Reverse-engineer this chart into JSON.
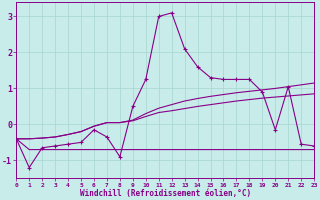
{
  "background_color": "#c8ecea",
  "grid_color": "#a8d4d0",
  "line_color": "#880088",
  "spine_color": "#880088",
  "xlabel": "Windchill (Refroidissement éolien,°C)",
  "xlim": [
    0,
    23
  ],
  "ylim": [
    -1.5,
    3.4
  ],
  "yticks": [
    -1,
    0,
    1,
    2,
    3
  ],
  "xticks": [
    0,
    1,
    2,
    3,
    4,
    5,
    6,
    7,
    8,
    9,
    10,
    11,
    12,
    13,
    14,
    15,
    16,
    17,
    18,
    19,
    20,
    21,
    22,
    23
  ],
  "hours": [
    0,
    1,
    2,
    3,
    4,
    5,
    6,
    7,
    8,
    9,
    10,
    11,
    12,
    13,
    14,
    15,
    16,
    17,
    18,
    19,
    20,
    21,
    22,
    23
  ],
  "line_main": [
    -0.4,
    -1.2,
    -0.65,
    -0.6,
    -0.55,
    -0.5,
    -0.15,
    -0.35,
    -0.9,
    0.5,
    1.25,
    3.0,
    3.1,
    2.1,
    1.6,
    1.3,
    1.25,
    1.25,
    1.25,
    0.9,
    -0.15,
    1.05,
    -0.55,
    -0.6
  ],
  "line_flat": [
    -0.4,
    -0.7,
    -0.7,
    -0.7,
    -0.7,
    -0.7,
    -0.7,
    -0.7,
    -0.7,
    -0.7,
    -0.7,
    -0.7,
    -0.7,
    -0.7,
    -0.7,
    -0.7,
    -0.7,
    -0.7,
    -0.7,
    -0.7,
    -0.7,
    -0.7,
    -0.7,
    -0.7
  ],
  "line_trend1": [
    -0.4,
    -0.4,
    -0.38,
    -0.35,
    -0.28,
    -0.2,
    -0.05,
    0.05,
    0.05,
    0.12,
    0.3,
    0.45,
    0.55,
    0.65,
    0.72,
    0.78,
    0.83,
    0.88,
    0.92,
    0.96,
    1.0,
    1.05,
    1.1,
    1.15
  ],
  "line_trend2": [
    -0.4,
    -0.4,
    -0.38,
    -0.35,
    -0.28,
    -0.2,
    -0.05,
    0.05,
    0.05,
    0.1,
    0.22,
    0.33,
    0.38,
    0.44,
    0.5,
    0.55,
    0.6,
    0.65,
    0.69,
    0.73,
    0.76,
    0.79,
    0.82,
    0.85
  ]
}
